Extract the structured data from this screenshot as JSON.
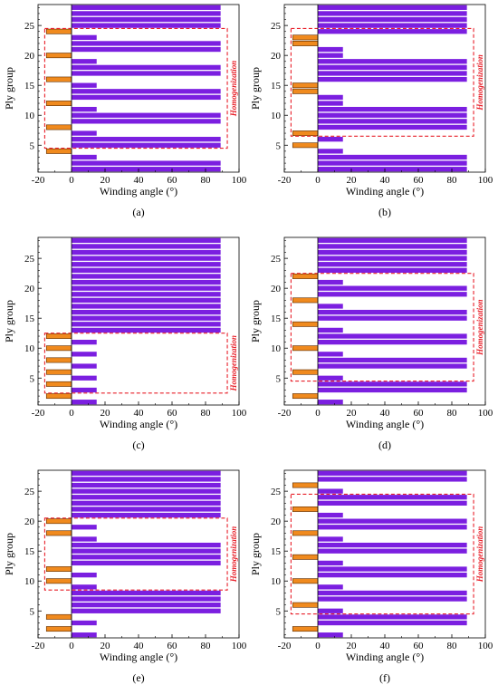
{
  "colors": {
    "positive": "#7b1fe0",
    "negative": "#f08a1e",
    "edge": "#5a2a00",
    "annotation": "#e8202a"
  },
  "chart_data": [
    {
      "type": "bar",
      "orientation": "horizontal",
      "label": "(a)",
      "xlabel": "Winding angle (°)",
      "ylabel": "Ply group",
      "xlim": [
        -20,
        100
      ],
      "ylim": [
        0.5,
        28.5
      ],
      "xticks": [
        -20,
        0,
        20,
        40,
        60,
        80,
        100
      ],
      "yticks": [
        5,
        10,
        15,
        20,
        25
      ],
      "ply_groups": [
        1,
        2,
        3,
        4,
        5,
        6,
        7,
        8,
        9,
        10,
        11,
        12,
        13,
        14,
        15,
        16,
        17,
        18,
        19,
        20,
        21,
        22,
        23,
        24,
        25,
        26,
        27,
        28
      ],
      "angles": [
        89,
        89,
        15,
        -15,
        89,
        89,
        15,
        -15,
        89,
        89,
        15,
        -15,
        89,
        89,
        15,
        -15,
        89,
        89,
        15,
        -15,
        89,
        89,
        15,
        -15,
        89,
        89,
        89,
        89
      ],
      "annotation": {
        "text": "Homogenization",
        "x_range": [
          -16,
          93
        ],
        "y_range": [
          4.5,
          24.5
        ]
      }
    },
    {
      "type": "bar",
      "orientation": "horizontal",
      "label": "(b)",
      "xlabel": "Winding angle (°)",
      "ylabel": "Ply group",
      "xlim": [
        -20,
        100
      ],
      "ylim": [
        0.5,
        28.5
      ],
      "xticks": [
        -20,
        0,
        20,
        40,
        60,
        80,
        100
      ],
      "yticks": [
        5,
        10,
        15,
        20,
        25
      ],
      "ply_groups": [
        1,
        2,
        3,
        4,
        5,
        6,
        7,
        8,
        9,
        10,
        11,
        12,
        13,
        14,
        15,
        16,
        17,
        18,
        19,
        20,
        21,
        22,
        23,
        24,
        25,
        26,
        27,
        28
      ],
      "angles": [
        89,
        89,
        89,
        15,
        -15,
        15,
        -15,
        89,
        89,
        89,
        89,
        15,
        15,
        -15,
        -15,
        89,
        89,
        89,
        89,
        15,
        15,
        -15,
        -15,
        89,
        89,
        89,
        89,
        89
      ],
      "annotation": {
        "text": "Homogenization",
        "x_range": [
          -16,
          93
        ],
        "y_range": [
          6.5,
          24.5
        ]
      }
    },
    {
      "type": "bar",
      "orientation": "horizontal",
      "label": "(c)",
      "xlabel": "Winding angle (°)",
      "ylabel": "Ply group",
      "xlim": [
        -20,
        100
      ],
      "ylim": [
        0.5,
        28.5
      ],
      "xticks": [
        -20,
        0,
        20,
        40,
        60,
        80,
        100
      ],
      "yticks": [
        5,
        10,
        15,
        20,
        25
      ],
      "ply_groups": [
        1,
        2,
        3,
        4,
        5,
        6,
        7,
        8,
        9,
        10,
        11,
        12,
        13,
        14,
        15,
        16,
        17,
        18,
        19,
        20,
        21,
        22,
        23,
        24,
        25,
        26,
        27,
        28
      ],
      "angles": [
        15,
        -15,
        15,
        -15,
        15,
        -15,
        15,
        -15,
        15,
        -15,
        15,
        -15,
        89,
        89,
        89,
        89,
        89,
        89,
        89,
        89,
        89,
        89,
        89,
        89,
        89,
        89,
        89,
        89
      ],
      "annotation": {
        "text": "Homogenization",
        "x_range": [
          -16,
          93
        ],
        "y_range": [
          2.5,
          12.5
        ]
      }
    },
    {
      "type": "bar",
      "orientation": "horizontal",
      "label": "(d)",
      "xlabel": "Winding angle (°)",
      "ylabel": "Ply group",
      "xlim": [
        -20,
        100
      ],
      "ylim": [
        0.5,
        28.5
      ],
      "xticks": [
        -20,
        0,
        20,
        40,
        60,
        80,
        100
      ],
      "yticks": [
        5,
        10,
        15,
        20,
        25
      ],
      "ply_groups": [
        1,
        2,
        3,
        4,
        5,
        6,
        7,
        8,
        9,
        10,
        11,
        12,
        13,
        14,
        15,
        16,
        17,
        18,
        19,
        20,
        21,
        22,
        23,
        24,
        25,
        26,
        27,
        28
      ],
      "angles": [
        15,
        -15,
        89,
        89,
        15,
        -15,
        89,
        89,
        15,
        -15,
        89,
        89,
        15,
        -15,
        89,
        89,
        15,
        -15,
        89,
        89,
        15,
        -15,
        89,
        89,
        89,
        89,
        89,
        89
      ],
      "annotation": {
        "text": "Homogenization",
        "x_range": [
          -16,
          93
        ],
        "y_range": [
          4.5,
          22.5
        ]
      }
    },
    {
      "type": "bar",
      "orientation": "horizontal",
      "label": "(e)",
      "xlabel": "Winding angle (°)",
      "ylabel": "Ply group",
      "xlim": [
        -20,
        100
      ],
      "ylim": [
        0.5,
        28.5
      ],
      "xticks": [
        -20,
        0,
        20,
        40,
        60,
        80,
        100
      ],
      "yticks": [
        5,
        10,
        15,
        20,
        25
      ],
      "ply_groups": [
        1,
        2,
        3,
        4,
        5,
        6,
        7,
        8,
        9,
        10,
        11,
        12,
        13,
        14,
        15,
        16,
        17,
        18,
        19,
        20,
        21,
        22,
        23,
        24,
        25,
        26,
        27,
        28
      ],
      "angles": [
        15,
        -15,
        15,
        -15,
        89,
        89,
        89,
        89,
        15,
        -15,
        15,
        -15,
        89,
        89,
        89,
        89,
        15,
        -15,
        15,
        -15,
        89,
        89,
        89,
        89,
        89,
        89,
        89,
        89
      ],
      "annotation": {
        "text": "Homogenization",
        "x_range": [
          -16,
          93
        ],
        "y_range": [
          8.5,
          20.5
        ]
      }
    },
    {
      "type": "bar",
      "orientation": "horizontal",
      "label": "(f)",
      "xlabel": "Winding angle (°)",
      "ylabel": "Ply group",
      "xlim": [
        -20,
        100
      ],
      "ylim": [
        0.5,
        28.5
      ],
      "xticks": [
        -20,
        0,
        20,
        40,
        60,
        80,
        100
      ],
      "yticks": [
        5,
        10,
        15,
        20,
        25
      ],
      "ply_groups": [
        1,
        2,
        3,
        4,
        5,
        6,
        7,
        8,
        9,
        10,
        11,
        12,
        13,
        14,
        15,
        16,
        17,
        18,
        19,
        20,
        21,
        22,
        23,
        24,
        25,
        26,
        27,
        28
      ],
      "angles": [
        15,
        -15,
        89,
        89,
        15,
        -15,
        89,
        89,
        15,
        -15,
        89,
        89,
        15,
        -15,
        89,
        89,
        15,
        -15,
        89,
        89,
        15,
        -15,
        89,
        89,
        15,
        -15,
        89,
        89
      ],
      "annotation": {
        "text": "Homogenization",
        "x_range": [
          -16,
          93
        ],
        "y_range": [
          4.5,
          24.5
        ]
      }
    }
  ]
}
